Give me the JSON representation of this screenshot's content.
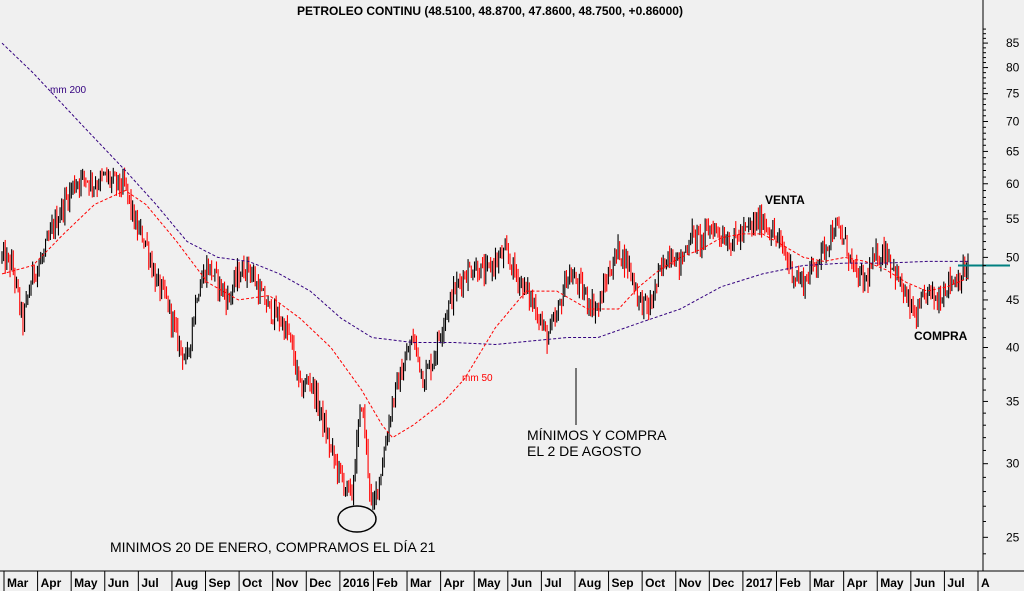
{
  "chart_data": {
    "type": "candlestick",
    "title": "PETROLEO CONTINU (48.5100, 48.8700, 47.8600, 48.7500, +0.86000)",
    "scale": "log",
    "ylim": [
      23,
      90
    ],
    "y_ticks": [
      25,
      30,
      35,
      40,
      45,
      50,
      55,
      60,
      65,
      70,
      75,
      80,
      85
    ],
    "x_ticks": [
      "Mar",
      "Apr",
      "May",
      "Jun",
      "Jul",
      "Aug",
      "Sep",
      "Oct",
      "Nov",
      "Dec",
      "2016",
      "Feb",
      "Mar",
      "Apr",
      "May",
      "Jun",
      "Jul",
      "Aug",
      "Sep",
      "Oct",
      "Nov",
      "Dec",
      "2017",
      "Feb",
      "Mar",
      "Apr",
      "May",
      "Jun",
      "Jul",
      "A"
    ],
    "price_path": [
      [
        0,
        50
      ],
      [
        1,
        49
      ],
      [
        2,
        42.5
      ],
      [
        3,
        48
      ],
      [
        4,
        50
      ],
      [
        5,
        54
      ],
      [
        6,
        57
      ],
      [
        7,
        60
      ],
      [
        8,
        61
      ],
      [
        9,
        60
      ],
      [
        10,
        61
      ],
      [
        11,
        60
      ],
      [
        12,
        59.5
      ],
      [
        13,
        54
      ],
      [
        14,
        52
      ],
      [
        15,
        47
      ],
      [
        16,
        45
      ],
      [
        17,
        41
      ],
      [
        18,
        38.5
      ],
      [
        19,
        46
      ],
      [
        20,
        49
      ],
      [
        21,
        47
      ],
      [
        22,
        45
      ],
      [
        23,
        48
      ],
      [
        24,
        49
      ],
      [
        25,
        46
      ],
      [
        26,
        44
      ],
      [
        27,
        43
      ],
      [
        28,
        41
      ],
      [
        29,
        36
      ],
      [
        30,
        37
      ],
      [
        31,
        34
      ],
      [
        32,
        31
      ],
      [
        33,
        29
      ],
      [
        34,
        27.5
      ],
      [
        35,
        35
      ],
      [
        36,
        26.5
      ],
      [
        37,
        30
      ],
      [
        38,
        35
      ],
      [
        39,
        38
      ],
      [
        40,
        41
      ],
      [
        41,
        37
      ],
      [
        42,
        39
      ],
      [
        43,
        43
      ],
      [
        44,
        46
      ],
      [
        45,
        48
      ],
      [
        46,
        49
      ],
      [
        47,
        48
      ],
      [
        48,
        49.5
      ],
      [
        49,
        50.5
      ],
      [
        50,
        48
      ],
      [
        51,
        46
      ],
      [
        52,
        44
      ],
      [
        53,
        41
      ],
      [
        54,
        43
      ],
      [
        55,
        48
      ],
      [
        56,
        47
      ],
      [
        57,
        45
      ],
      [
        58,
        44
      ],
      [
        59,
        48
      ],
      [
        60,
        51
      ],
      [
        61,
        49
      ],
      [
        62,
        45
      ],
      [
        63,
        44
      ],
      [
        64,
        48
      ],
      [
        65,
        51
      ],
      [
        66,
        49
      ],
      [
        67,
        53
      ],
      [
        68,
        52
      ],
      [
        69,
        54
      ],
      [
        70,
        53
      ],
      [
        71,
        52
      ],
      [
        72,
        53
      ],
      [
        73,
        54
      ],
      [
        74,
        55
      ],
      [
        75,
        53
      ],
      [
        76,
        51
      ],
      [
        77,
        48
      ],
      [
        78,
        47
      ],
      [
        79,
        49
      ],
      [
        80,
        51
      ],
      [
        81,
        54
      ],
      [
        82,
        52
      ],
      [
        83,
        48
      ],
      [
        84,
        47
      ],
      [
        85,
        50
      ],
      [
        86,
        51
      ],
      [
        87,
        48
      ],
      [
        88,
        45
      ],
      [
        89,
        43
      ],
      [
        90,
        46
      ],
      [
        91,
        45
      ],
      [
        92,
        47
      ],
      [
        93,
        47.5
      ],
      [
        94,
        48.75
      ]
    ],
    "ma_series": [
      {
        "name": "mm 200",
        "color": "#33007f",
        "path": [
          [
            0,
            85
          ],
          [
            3,
            79
          ],
          [
            8,
            69
          ],
          [
            12,
            62
          ],
          [
            15,
            57
          ],
          [
            18,
            52
          ],
          [
            21,
            50
          ],
          [
            24,
            49.5
          ],
          [
            27,
            48
          ],
          [
            30,
            46
          ],
          [
            33,
            43
          ],
          [
            36,
            41
          ],
          [
            40,
            40.5
          ],
          [
            44,
            40.5
          ],
          [
            48,
            40.3
          ],
          [
            52,
            40.7
          ],
          [
            55,
            41
          ],
          [
            58,
            41
          ],
          [
            62,
            42.5
          ],
          [
            66,
            44
          ],
          [
            70,
            46.5
          ],
          [
            74,
            48
          ],
          [
            78,
            49
          ],
          [
            82,
            49.3
          ],
          [
            86,
            49.3
          ],
          [
            90,
            49.5
          ],
          [
            94,
            49.5
          ]
        ]
      },
      {
        "name": "mm 50",
        "color": "#ff0000",
        "path": [
          [
            0,
            48
          ],
          [
            3,
            49
          ],
          [
            6,
            53
          ],
          [
            9,
            57
          ],
          [
            12,
            59
          ],
          [
            14,
            57
          ],
          [
            17,
            52
          ],
          [
            20,
            47
          ],
          [
            23,
            45
          ],
          [
            26,
            45.5
          ],
          [
            29,
            43
          ],
          [
            32,
            40
          ],
          [
            35,
            36
          ],
          [
            37,
            33
          ],
          [
            38,
            32
          ],
          [
            40,
            33
          ],
          [
            43,
            35
          ],
          [
            45,
            37
          ],
          [
            48,
            42
          ],
          [
            51,
            46
          ],
          [
            54,
            46
          ],
          [
            57,
            44
          ],
          [
            60,
            44
          ],
          [
            62,
            46.5
          ],
          [
            64,
            48.5
          ],
          [
            66,
            50
          ],
          [
            68,
            51
          ],
          [
            70,
            52.5
          ],
          [
            72,
            53
          ],
          [
            74,
            53
          ],
          [
            76,
            51.5
          ],
          [
            78,
            50
          ],
          [
            80,
            49.5
          ],
          [
            82,
            50
          ],
          [
            84,
            49.5
          ],
          [
            86,
            48.5
          ],
          [
            88,
            47
          ],
          [
            90,
            46
          ],
          [
            92,
            46.5
          ],
          [
            94,
            47.5
          ]
        ]
      }
    ],
    "ma_labels": {
      "mm200": "mm 200",
      "mm50": "mm 50"
    },
    "last_price_line": 49.0,
    "annotations": {
      "enero": "MINIMOS 20 DE ENERO, COMPRAMOS EL DÍA 21",
      "agosto_1": "MÍNIMOS Y COMPRA",
      "agosto_2": "EL 2 DE AGOSTO",
      "venta": "VENTA",
      "compra": "COMPRA"
    },
    "colors": {
      "candle_up": "#000000",
      "candle_down": "#ff0000",
      "last_line": "#008080",
      "background": "#f0f0f0"
    }
  }
}
